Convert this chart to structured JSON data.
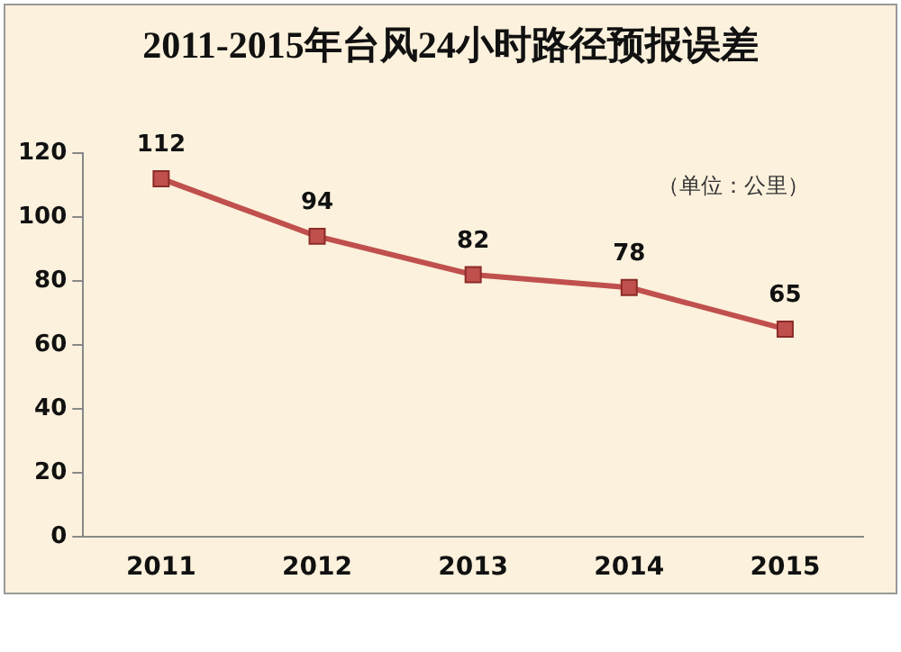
{
  "chart_data": {
    "type": "line",
    "title": "2011-2015年台风24小时路径预报误差",
    "annotations": [
      "（单位：公里）"
    ],
    "categories": [
      "2011",
      "2012",
      "2013",
      "2014",
      "2015"
    ],
    "series": [
      {
        "color": "#c0504d",
        "values": [
          112,
          94,
          82,
          78,
          65
        ]
      }
    ],
    "ylim": [
      0,
      120
    ],
    "yticks": [
      0,
      20,
      40,
      60,
      80,
      100,
      120
    ],
    "grid": false,
    "legend": false,
    "marker": "square",
    "line_style": "solid",
    "data_labels": true
  }
}
